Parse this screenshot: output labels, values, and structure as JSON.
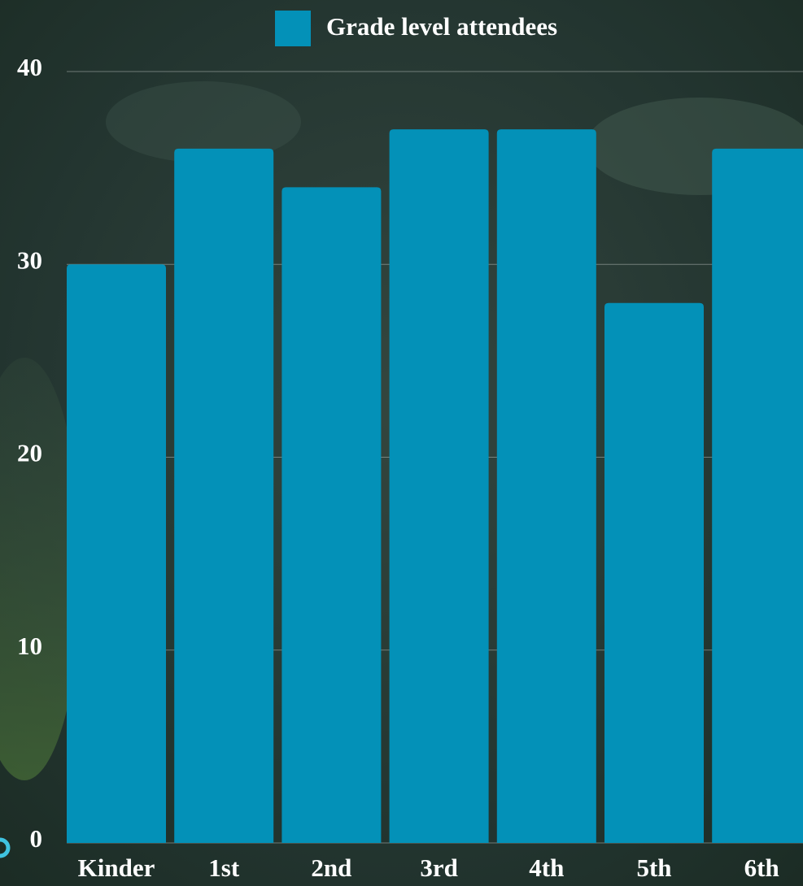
{
  "chart_data": {
    "type": "bar",
    "categories": [
      "Kinder",
      "1st",
      "2nd",
      "3rd",
      "4th",
      "5th",
      "6th"
    ],
    "series": [
      {
        "name": "Grade level attendees",
        "color": "#0391b8",
        "values": [
          30,
          36,
          34,
          37,
          37,
          28,
          36
        ]
      }
    ],
    "ylim": [
      0,
      40
    ],
    "yticks": [
      0,
      10,
      20,
      30,
      40
    ],
    "grid": true,
    "legend": "top"
  }
}
